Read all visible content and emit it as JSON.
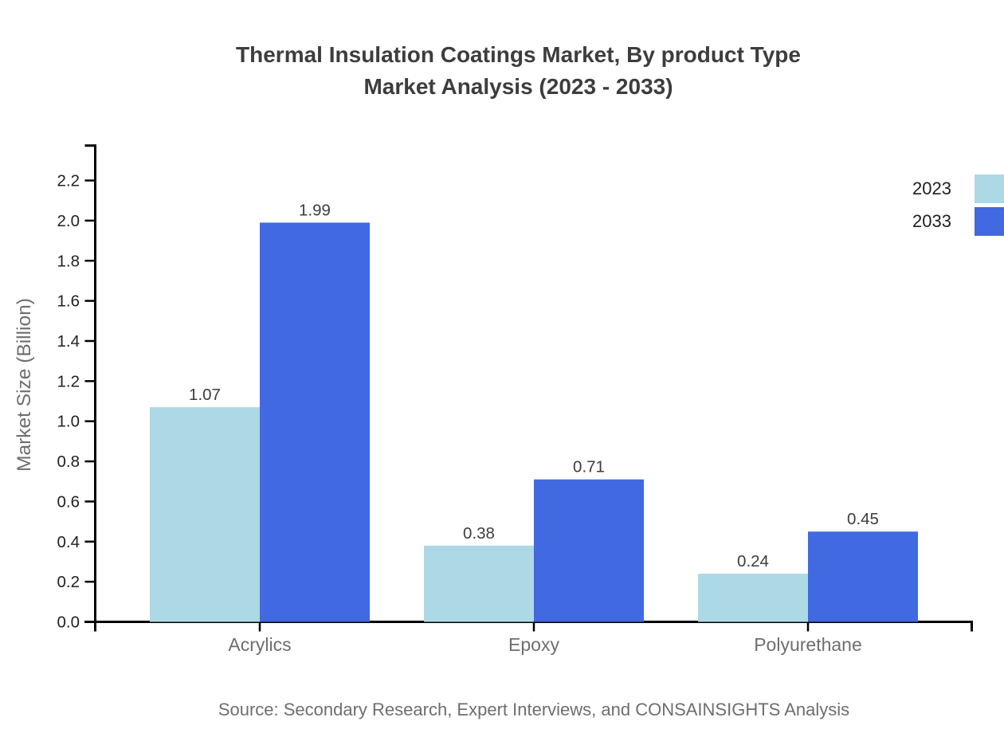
{
  "title": {
    "line1": "Thermal Insulation Coatings Market, By product Type",
    "line2": "Market Analysis (2023 - 2033)"
  },
  "source": "Source: Secondary Research, Expert Interviews, and CONSAINSIGHTS Analysis",
  "legend": {
    "items": [
      "2023",
      "2033"
    ]
  },
  "chart_data": {
    "type": "bar",
    "categories": [
      "Acrylics",
      "Epoxy",
      "Polyurethane"
    ],
    "series": [
      {
        "name": "2023",
        "color": "#ADD8E6",
        "values": [
          1.07,
          0.38,
          0.24
        ]
      },
      {
        "name": "2033",
        "color": "#4169E1",
        "values": [
          1.99,
          0.71,
          0.45
        ]
      }
    ],
    "xlabel": "",
    "ylabel": "Market Size (Billion)",
    "ylim": [
      0,
      2.38
    ],
    "yticks": [
      0.0,
      0.2,
      0.4,
      0.6,
      0.8,
      1.0,
      1.2,
      1.4,
      1.6,
      1.8,
      2.0,
      2.2
    ],
    "grid": false,
    "bar_value_labels": true,
    "legend_position": "top-right"
  },
  "colors": {
    "axis": "#000000",
    "title_text": "#3d3d3d",
    "value_label_text": "#3d3d3d",
    "tick_label_text": "#222222",
    "category_label_text": "#6e6e6e",
    "axis_title_text": "#6e6e6e",
    "source_text": "#6e6e6e",
    "background": "#ffffff"
  }
}
